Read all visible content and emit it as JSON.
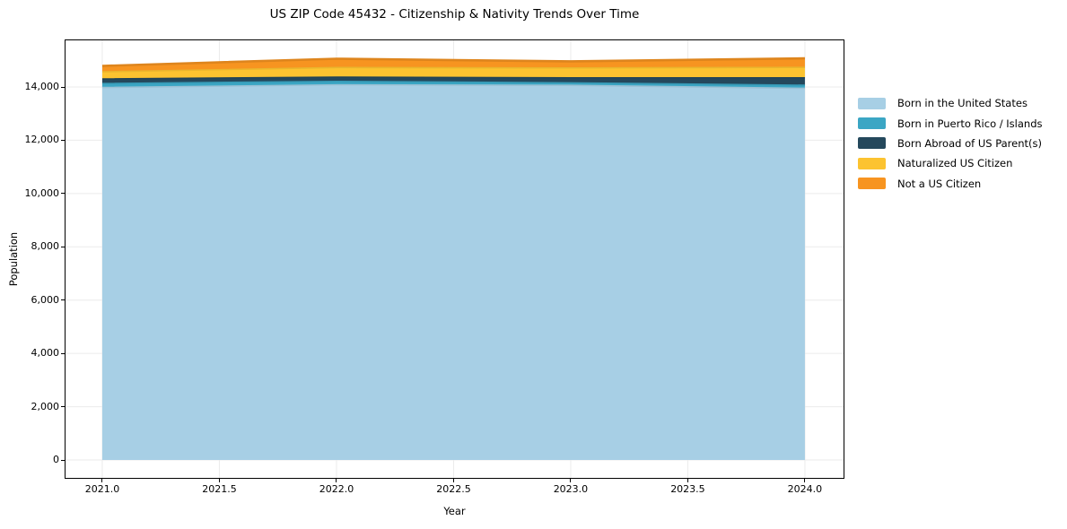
{
  "title": "US ZIP Code 45432 - Citizenship & Nativity Trends Over Time",
  "axes": {
    "xlabel": "Year",
    "ylabel": "Population",
    "x_ticks": {
      "values": [
        2021.0,
        2021.5,
        2022.0,
        2022.5,
        2023.0,
        2023.5,
        2024.0
      ],
      "labels": [
        "2021.0",
        "2021.5",
        "2022.0",
        "2022.5",
        "2023.0",
        "2023.5",
        "2024.0"
      ]
    },
    "y_ticks": {
      "values": [
        0,
        2000,
        4000,
        6000,
        8000,
        10000,
        12000,
        14000
      ],
      "labels": [
        "0",
        "2,000",
        "4,000",
        "6,000",
        "8,000",
        "10,000",
        "12,000",
        "14,000"
      ]
    },
    "grid": true,
    "grid_color": "#ebebeb"
  },
  "legend": {
    "position": "center-right-outside",
    "items": [
      {
        "label": "Born in the United States",
        "color": "#a7cfe5"
      },
      {
        "label": "Born in Puerto Rico / Islands",
        "color": "#3ba6c4"
      },
      {
        "label": "Born Abroad of US Parent(s)",
        "color": "#24485c"
      },
      {
        "label": "Naturalized US Citizen",
        "color": "#fcc330"
      },
      {
        "label": "Not a US Citizen",
        "color": "#f79420"
      }
    ]
  },
  "chart_data": {
    "type": "area",
    "stacked": true,
    "title": "US ZIP Code 45432 - Citizenship & Nativity Trends Over Time",
    "xlabel": "Year",
    "ylabel": "Population",
    "x": [
      2021,
      2022,
      2023,
      2024
    ],
    "series": [
      {
        "name": "Born in the United States",
        "color": "#a7cfe5",
        "values": [
          13980,
          14080,
          14060,
          13950
        ]
      },
      {
        "name": "Born in Puerto Rico / Islands",
        "color": "#3ba6c4",
        "values": [
          150,
          130,
          95,
          115
        ]
      },
      {
        "name": "Born Abroad of US Parent(s)",
        "color": "#24485c",
        "values": [
          170,
          160,
          190,
          280
        ]
      },
      {
        "name": "Naturalized US Citizen",
        "color": "#fcc330",
        "values": [
          270,
          360,
          370,
          390
        ]
      },
      {
        "name": "Not a US Citizen",
        "color": "#f79420",
        "values": [
          220,
          330,
          245,
          340
        ]
      }
    ],
    "totals": [
      14790,
      15060,
      14960,
      15075
    ],
    "xlim": [
      2020.843,
      2024.165
    ],
    "ylim": [
      -673,
      15750
    ],
    "grid": true,
    "legend_position": "right"
  }
}
